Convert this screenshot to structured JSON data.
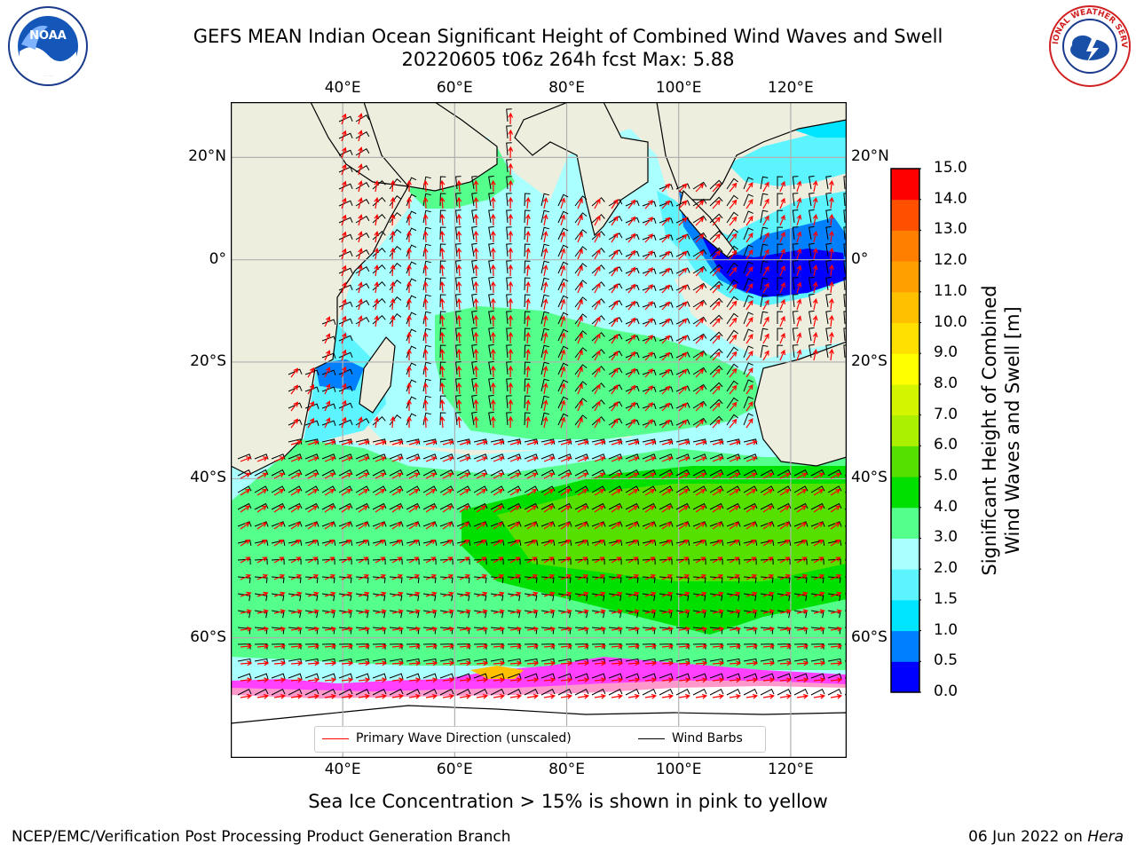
{
  "header": {
    "title_line1": "GEFS MEAN Indian Ocean Significant Height of Combined Wind Waves and Swell",
    "title_line2": "20220605 t06z 264h fcst   Max: 5.88"
  },
  "logos": {
    "left": {
      "name": "noaa-logo",
      "text": "NOAA"
    },
    "right": {
      "name": "nws-logo",
      "text": "NATIONAL WEATHER SERVICE"
    }
  },
  "map": {
    "lon_ticks": [
      "40°E",
      "60°E",
      "80°E",
      "100°E",
      "120°E"
    ],
    "lat_ticks": [
      "20°N",
      "0°",
      "20°S",
      "40°S",
      "60°S"
    ],
    "lon_range": [
      20,
      130
    ],
    "lat_range": [
      -70,
      30
    ],
    "colors": {
      "land": "#eeeede",
      "ocean_ice": "#ffffff",
      "grid": "#b0b0b0",
      "wave_arrow": "#ff0000",
      "wind_barb": "#000000"
    }
  },
  "colorbar": {
    "label_line1": "Significant Height of Combined",
    "label_line2": "Wind Waves and Swell [m]",
    "ticks": [
      "0.0",
      "0.5",
      "1.0",
      "1.5",
      "2.0",
      "3.0",
      "4.0",
      "5.0",
      "6.0",
      "7.0",
      "8.0",
      "9.0",
      "10.0",
      "11.0",
      "12.0",
      "13.0",
      "14.0",
      "15.0"
    ],
    "colors": [
      "#0000ff",
      "#0080ff",
      "#00e5ff",
      "#5cf5ff",
      "#aaffff",
      "#55ff8c",
      "#00e000",
      "#55e000",
      "#aaf000",
      "#d4f500",
      "#ffff00",
      "#ffe000",
      "#ffc000",
      "#ffa000",
      "#ff8000",
      "#ff5000",
      "#ff0000"
    ]
  },
  "legend": {
    "wave_label": "Primary Wave Direction (unscaled)",
    "wind_label": "Wind Barbs"
  },
  "caption": "Sea Ice Concentration > 15% is shown in pink to yellow",
  "footer": {
    "left": "NCEP/EMC/Verification Post Processing Product Generation Branch",
    "right_date": "06 Jun 2022 on ",
    "right_host": "Hera"
  }
}
